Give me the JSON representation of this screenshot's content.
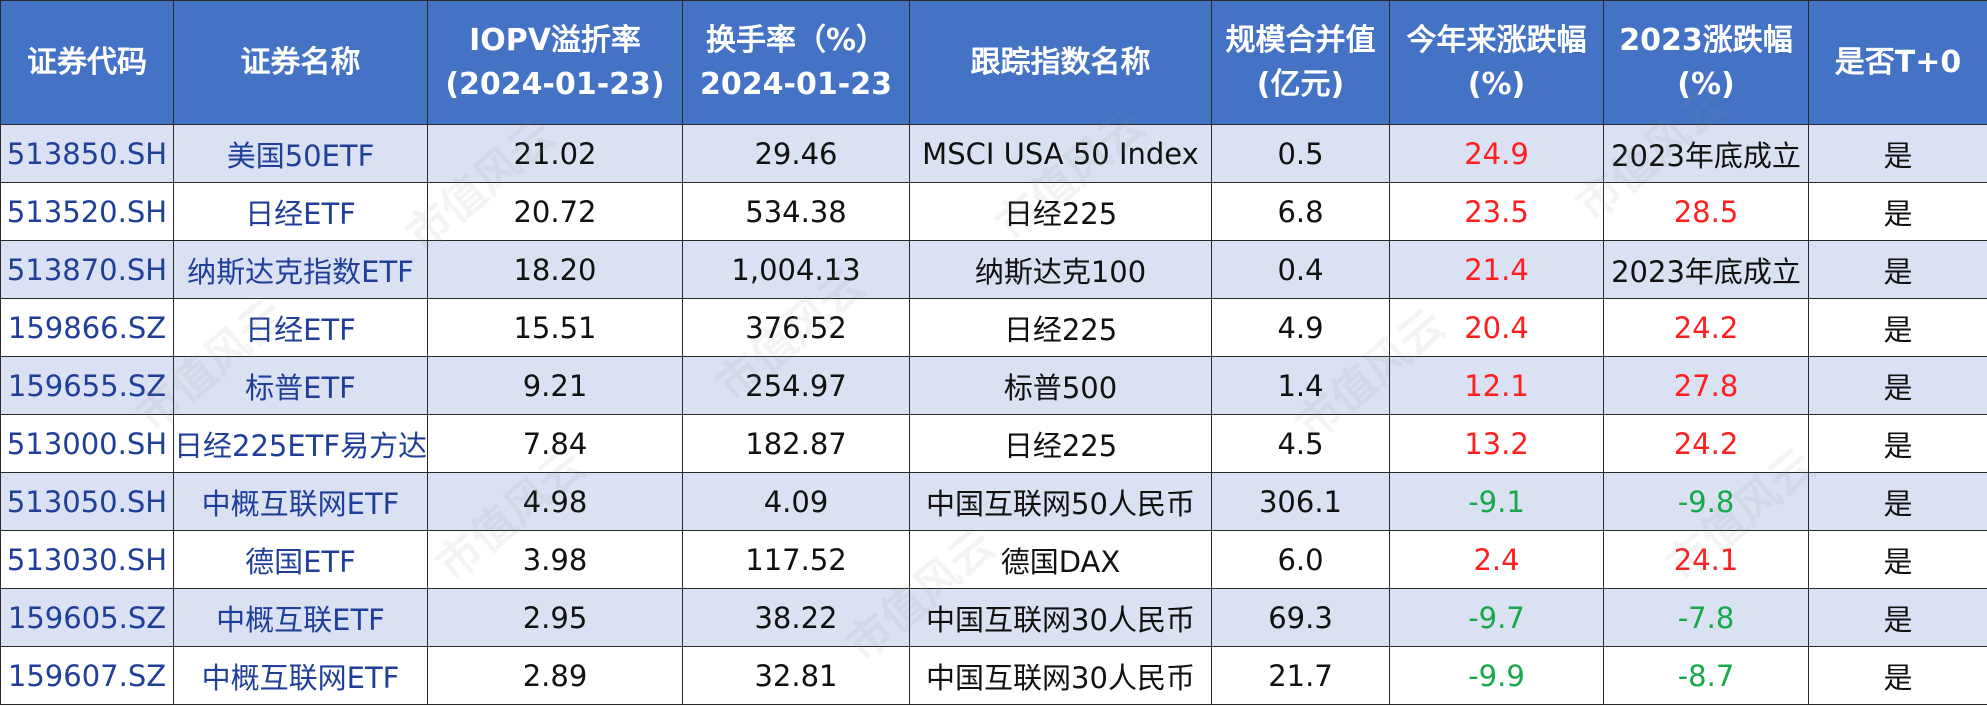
{
  "headers": [
    "证券代码",
    "证券名称",
    "IOPV溢折率\n(2024-01-23)",
    "换手率（%）\n2024-01-23",
    "跟踪指数名称",
    "规模合并值\n(亿元)",
    "今年来涨跌幅\n(%)",
    "2023涨跌幅\n(%)",
    "是否T+0"
  ],
  "rows": [
    {
      "code": "513850.SH",
      "name": "美国50ETF",
      "iopv": "21.02",
      "turnover": "29.46",
      "index": "MSCI USA 50 Index",
      "scale": "0.5",
      "ytd": "24.9",
      "ytd_dir": "up",
      "y2023": "2023年底成立",
      "y2023_dir": "neutral",
      "t0": "是"
    },
    {
      "code": "513520.SH",
      "name": "日经ETF",
      "iopv": "20.72",
      "turnover": "534.38",
      "index": "日经225",
      "scale": "6.8",
      "ytd": "23.5",
      "ytd_dir": "up",
      "y2023": "28.5",
      "y2023_dir": "up",
      "t0": "是"
    },
    {
      "code": "513870.SH",
      "name": "纳斯达克指数ETF",
      "iopv": "18.20",
      "turnover": "1,004.13",
      "index": "纳斯达克100",
      "scale": "0.4",
      "ytd": "21.4",
      "ytd_dir": "up",
      "y2023": "2023年底成立",
      "y2023_dir": "neutral",
      "t0": "是"
    },
    {
      "code": "159866.SZ",
      "name": "日经ETF",
      "iopv": "15.51",
      "turnover": "376.52",
      "index": "日经225",
      "scale": "4.9",
      "ytd": "20.4",
      "ytd_dir": "up",
      "y2023": "24.2",
      "y2023_dir": "up",
      "t0": "是"
    },
    {
      "code": "159655.SZ",
      "name": "标普ETF",
      "iopv": "9.21",
      "turnover": "254.97",
      "index": "标普500",
      "scale": "1.4",
      "ytd": "12.1",
      "ytd_dir": "up",
      "y2023": "27.8",
      "y2023_dir": "up",
      "t0": "是"
    },
    {
      "code": "513000.SH",
      "name": "日经225ETF易方达",
      "iopv": "7.84",
      "turnover": "182.87",
      "index": "日经225",
      "scale": "4.5",
      "ytd": "13.2",
      "ytd_dir": "up",
      "y2023": "24.2",
      "y2023_dir": "up",
      "t0": "是"
    },
    {
      "code": "513050.SH",
      "name": "中概互联网ETF",
      "iopv": "4.98",
      "turnover": "4.09",
      "index": "中国互联网50人民币",
      "scale": "306.1",
      "ytd": "-9.1",
      "ytd_dir": "down",
      "y2023": "-9.8",
      "y2023_dir": "down",
      "t0": "是"
    },
    {
      "code": "513030.SH",
      "name": "德国ETF",
      "iopv": "3.98",
      "turnover": "117.52",
      "index": "德国DAX",
      "scale": "6.0",
      "ytd": "2.4",
      "ytd_dir": "up",
      "y2023": "24.1",
      "y2023_dir": "up",
      "t0": "是"
    },
    {
      "code": "159605.SZ",
      "name": "中概互联ETF",
      "iopv": "2.95",
      "turnover": "38.22",
      "index": "中国互联网30人民币",
      "scale": "69.3",
      "ytd": "-9.7",
      "ytd_dir": "down",
      "y2023": "-7.8",
      "y2023_dir": "down",
      "t0": "是"
    },
    {
      "code": "159607.SZ",
      "name": "中概互联网ETF",
      "iopv": "2.89",
      "turnover": "32.81",
      "index": "中国互联网30人民币",
      "scale": "21.7",
      "ytd": "-9.9",
      "ytd_dir": "down",
      "y2023": "-8.7",
      "y2023_dir": "down",
      "t0": "是"
    }
  ],
  "watermark": "市值风云",
  "colors": {
    "header_bg": "#4472c4",
    "stripe": "#d9e1f2",
    "up": "#ff1f1f",
    "down": "#17a84a",
    "link": "#1f3f99"
  }
}
